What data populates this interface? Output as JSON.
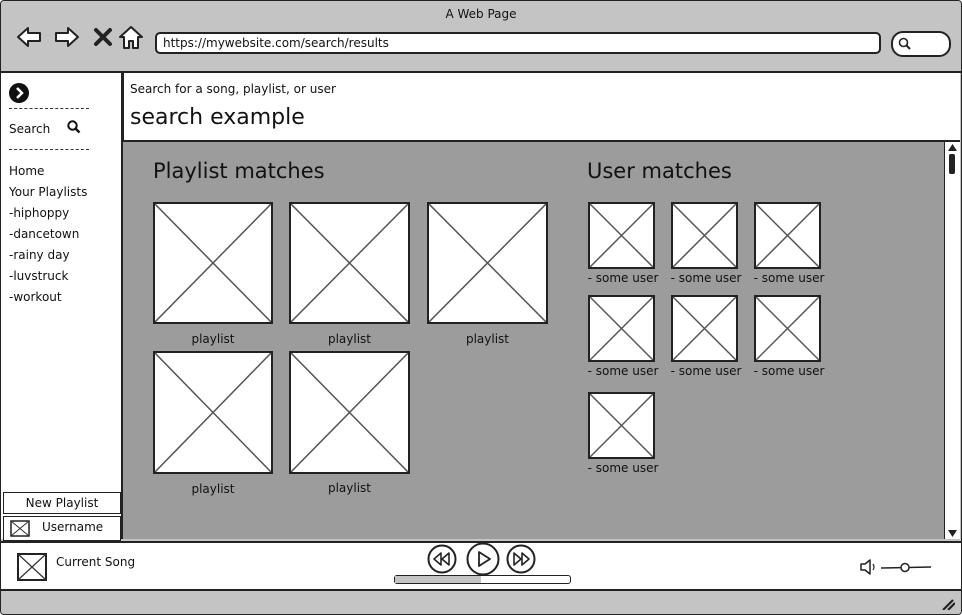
{
  "window": {
    "title": "A Web Page"
  },
  "browser": {
    "url": "https://mywebsite.com/search/results"
  },
  "sidebar": {
    "search_label": "Search",
    "home_label": "Home",
    "your_playlists_label": "Your Playlists",
    "playlists": [
      "-hiphoppy",
      "-dancetown",
      "-rainy day",
      "-luvstruck",
      "-workout"
    ],
    "new_playlist_label": "New Playlist",
    "username": "Username"
  },
  "search": {
    "hint": "Search for a song, playlist, or user",
    "query": "search example"
  },
  "results": {
    "playlist_heading": "Playlist matches",
    "playlists": [
      "playlist",
      "playlist",
      "playlist",
      "playlist",
      "playlist"
    ],
    "user_heading": "User matches",
    "users": [
      "- some user",
      "- some user",
      "- some user",
      "- some user",
      "- some user",
      "- some user",
      "- some user"
    ]
  },
  "player": {
    "current_song": "Current Song",
    "progress": 0.49
  },
  "icons": [
    "back-arrow-icon",
    "forward-arrow-icon",
    "close-icon",
    "home-icon",
    "search-icon",
    "expand-arrow-icon",
    "rewind-icon",
    "play-icon",
    "fast-forward-icon",
    "volume-icon",
    "resize-grip-icon"
  ]
}
